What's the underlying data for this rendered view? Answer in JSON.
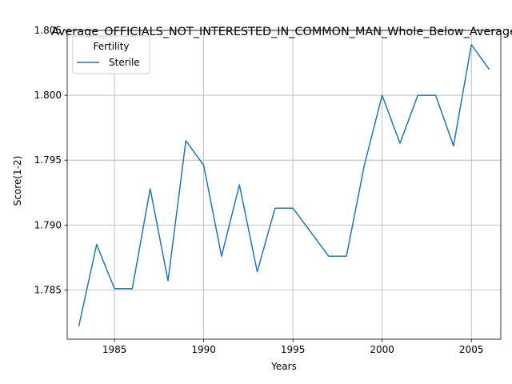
{
  "chart_data": {
    "type": "line",
    "title": "Average_OFFICIALS_NOT_INTERESTED_IN_COMMON_MAN_Whole_Below_Average",
    "xlabel": "Years",
    "ylabel": "Score(1-2)",
    "xlim": [
      1982.35,
      2006.65
    ],
    "ylim": [
      1.7812,
      1.805
    ],
    "xticks": [
      "1985",
      "1990",
      "1995",
      "2000",
      "2005"
    ],
    "yticks": [
      "1.785",
      "1.790",
      "1.795",
      "1.800",
      "1.805"
    ],
    "grid": true,
    "legend": {
      "title": "Fertility",
      "placement": "top-left"
    },
    "colors": {
      "series": "#1f77b4",
      "grid": "#b0b0b0",
      "axes": "#000000"
    },
    "series": [
      {
        "name": "Sterile",
        "x": [
          1983,
          1984,
          1985,
          1986,
          1987,
          1988,
          1989,
          1990,
          1991,
          1992,
          1993,
          1994,
          1995,
          1997,
          1998,
          1999,
          2000,
          2001,
          2002,
          2003,
          2004,
          2005,
          2006
        ],
        "values": [
          1.7822,
          1.7885,
          1.7851,
          1.7851,
          1.7928,
          1.7857,
          1.7965,
          1.7946,
          1.7876,
          1.7931,
          1.7864,
          1.7913,
          1.7913,
          1.7876,
          1.7876,
          1.7946,
          1.8,
          1.7963,
          1.8,
          1.8,
          1.7961,
          1.8039,
          1.802
        ]
      }
    ]
  }
}
